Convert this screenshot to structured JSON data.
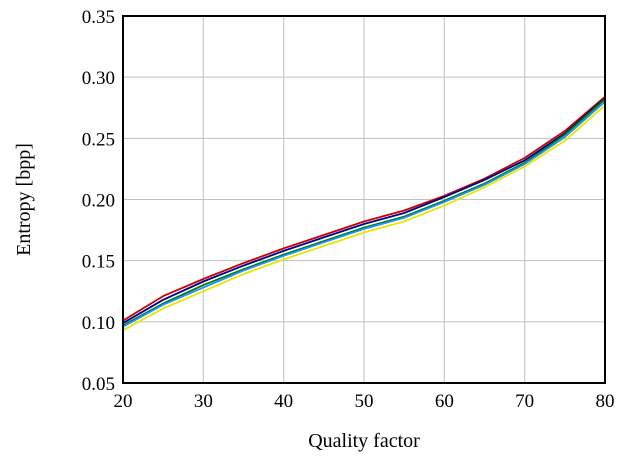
{
  "chart_data": {
    "type": "line",
    "title": "",
    "xlabel": "Quality factor",
    "ylabel": "Entropy [bpp]",
    "xlim": [
      20,
      80
    ],
    "ylim": [
      0.05,
      0.35
    ],
    "xticks": [
      "20",
      "30",
      "40",
      "50",
      "60",
      "70",
      "80"
    ],
    "yticks": [
      "0.05",
      "0.10",
      "0.15",
      "0.20",
      "0.25",
      "0.30",
      "0.35"
    ],
    "grid": true,
    "legend": "none",
    "x": [
      20,
      25,
      30,
      35,
      40,
      45,
      50,
      55,
      60,
      65,
      70,
      75,
      80
    ],
    "series": [
      {
        "color": "#cc0000",
        "values": [
          0.101,
          0.121,
          0.135,
          0.148,
          0.16,
          0.171,
          0.182,
          0.191,
          0.203,
          0.217,
          0.234,
          0.256,
          0.284
        ]
      },
      {
        "color": "#00008b",
        "values": [
          0.099,
          0.118,
          0.133,
          0.146,
          0.158,
          0.169,
          0.18,
          0.189,
          0.202,
          0.216,
          0.232,
          0.254,
          0.283
        ]
      },
      {
        "color": "#008000",
        "values": [
          0.097,
          0.115,
          0.13,
          0.143,
          0.155,
          0.166,
          0.177,
          0.186,
          0.199,
          0.213,
          0.23,
          0.253,
          0.282
        ]
      },
      {
        "color": "#1e90ff",
        "values": [
          0.096,
          0.114,
          0.128,
          0.142,
          0.154,
          0.165,
          0.176,
          0.185,
          0.198,
          0.212,
          0.229,
          0.251,
          0.28
        ]
      },
      {
        "color": "#e6e600",
        "values": [
          0.093,
          0.111,
          0.125,
          0.139,
          0.151,
          0.162,
          0.173,
          0.182,
          0.195,
          0.21,
          0.227,
          0.248,
          0.277
        ]
      }
    ]
  }
}
